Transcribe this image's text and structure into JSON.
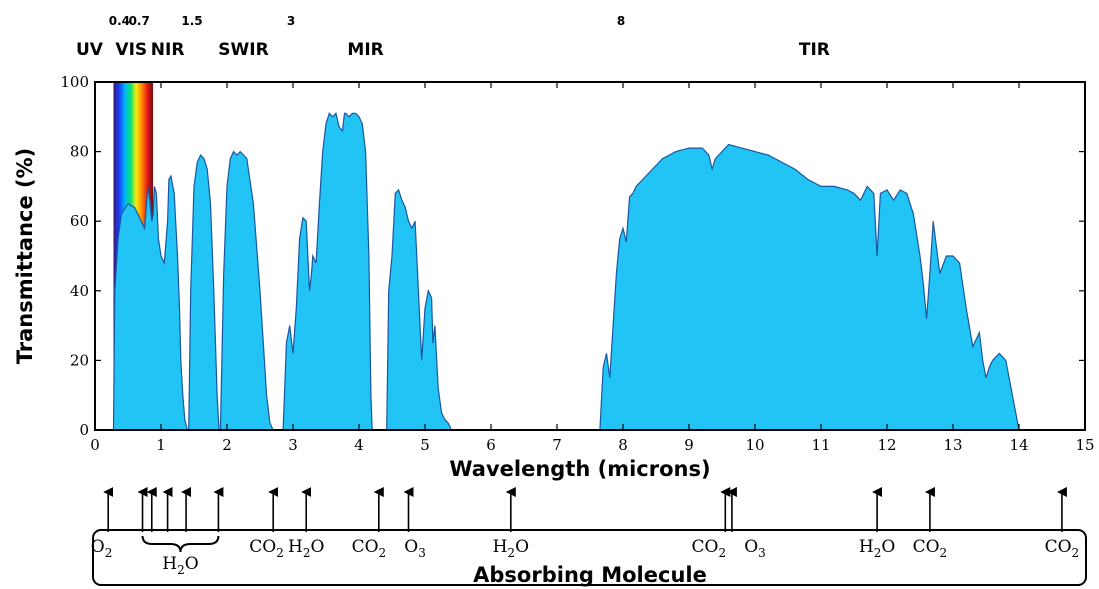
{
  "chart_data": {
    "type": "area",
    "xlabel": "Wavelength (microns)",
    "ylabel": "Transmittance (%)",
    "xlim": [
      0,
      15
    ],
    "ylim": [
      0,
      100
    ],
    "x_ticks": [
      0,
      1,
      2,
      3,
      4,
      5,
      6,
      7,
      8,
      9,
      10,
      11,
      12,
      13,
      14,
      15
    ],
    "y_ticks": [
      0,
      20,
      40,
      60,
      80,
      100
    ],
    "grid": false,
    "colors": {
      "fill": "#22c4f5",
      "stroke": "#1a56a0",
      "axis": "#000000"
    },
    "spectrum_strip": {
      "x_start": 0.28,
      "x_end": 0.88,
      "colors": [
        "#3a1b6e",
        "#1a3cff",
        "#00b4ff",
        "#00e07a",
        "#f7ee10",
        "#ff8a00",
        "#e81818",
        "#6b1010"
      ]
    },
    "boundaries": [
      {
        "value": 0.4,
        "label": "0.4"
      },
      {
        "value": 0.7,
        "label": "0.7"
      },
      {
        "value": 1.5,
        "label": "1.5"
      },
      {
        "value": 3,
        "label": "3"
      },
      {
        "value": 8,
        "label": "8"
      }
    ],
    "bands": [
      {
        "label": "UV",
        "x": 0.0
      },
      {
        "label": "VIS",
        "x": 0.55
      },
      {
        "label": "NIR",
        "x": 1.1
      },
      {
        "label": "SWIR",
        "x": 2.25
      },
      {
        "label": "MIR",
        "x": 4.1
      },
      {
        "label": "TIR",
        "x": 10.9
      }
    ],
    "windows": [
      {
        "x": [
          0.28,
          0.3,
          0.35,
          0.4,
          0.5,
          0.6,
          0.7,
          0.75,
          0.78,
          0.8,
          0.83,
          0.86,
          0.88,
          0.9,
          0.93,
          0.96,
          1.0,
          1.05,
          1.1,
          1.12,
          1.15,
          1.2,
          1.25,
          1.28,
          1.3,
          1.33,
          1.36,
          1.4
        ],
        "y": [
          0,
          40,
          55,
          62,
          65,
          64,
          60,
          58,
          65,
          70,
          66,
          60,
          62,
          70,
          68,
          55,
          50,
          48,
          60,
          72,
          73,
          68,
          50,
          35,
          20,
          10,
          3,
          0
        ]
      },
      {
        "x": [
          1.42,
          1.45,
          1.5,
          1.55,
          1.6,
          1.65,
          1.7,
          1.75,
          1.8,
          1.85,
          1.88
        ],
        "y": [
          0,
          40,
          70,
          77,
          79,
          78,
          75,
          65,
          40,
          10,
          0
        ]
      },
      {
        "x": [
          1.9,
          1.95,
          2.0,
          2.05,
          2.1,
          2.15,
          2.2,
          2.3,
          2.4,
          2.5,
          2.6,
          2.65,
          2.7
        ],
        "y": [
          0,
          45,
          70,
          78,
          80,
          79,
          80,
          78,
          65,
          40,
          10,
          2,
          0
        ]
      },
      {
        "x": [
          2.85,
          2.88,
          2.9,
          2.95,
          3.0,
          3.05,
          3.1,
          3.15,
          3.2,
          3.25,
          3.28,
          3.3,
          3.35,
          3.4,
          3.45,
          3.5,
          3.55,
          3.6,
          3.65,
          3.7,
          3.75,
          3.78,
          3.8,
          3.85,
          3.9,
          3.95,
          4.0,
          4.05,
          4.1,
          4.15,
          4.18,
          4.2
        ],
        "y": [
          0,
          15,
          25,
          30,
          22,
          35,
          55,
          61,
          60,
          40,
          45,
          50,
          48,
          65,
          80,
          88,
          91,
          90,
          91,
          87,
          86,
          91,
          91,
          90,
          91,
          91,
          90,
          88,
          80,
          50,
          10,
          0
        ]
      },
      {
        "x": [
          4.42,
          4.45,
          4.5,
          4.55,
          4.6,
          4.65,
          4.7,
          4.75,
          4.8,
          4.85,
          4.9,
          4.95,
          5.0,
          5.05,
          5.1,
          5.12,
          5.15,
          5.2,
          5.25,
          5.3,
          5.35,
          5.4
        ],
        "y": [
          0,
          40,
          50,
          68,
          69,
          66,
          64,
          60,
          58,
          60,
          40,
          20,
          35,
          40,
          38,
          25,
          30,
          12,
          5,
          3,
          2,
          0
        ]
      },
      {
        "x": [
          7.65,
          7.7,
          7.75,
          7.8,
          7.85,
          7.9,
          7.95,
          8.0,
          8.05,
          8.1,
          8.15,
          8.2,
          8.3,
          8.4,
          8.5,
          8.6,
          8.7,
          8.8,
          9.0,
          9.2,
          9.3,
          9.35,
          9.4,
          9.5,
          9.6,
          9.8,
          10.0,
          10.2,
          10.4,
          10.6,
          10.8,
          11.0,
          11.2,
          11.4,
          11.5,
          11.6,
          11.7,
          11.8,
          11.85,
          11.9,
          12.0,
          12.1,
          12.2,
          12.3,
          12.4,
          12.5,
          12.55,
          12.6,
          12.65,
          12.7,
          12.8,
          12.9,
          13.0,
          13.1,
          13.2,
          13.3,
          13.4,
          13.45,
          13.5,
          13.55,
          13.6,
          13.7,
          13.8,
          13.9,
          14.0
        ],
        "y": [
          0,
          18,
          22,
          15,
          30,
          45,
          55,
          58,
          54,
          67,
          68,
          70,
          72,
          74,
          76,
          78,
          79,
          80,
          81,
          81,
          79,
          75,
          78,
          80,
          82,
          81,
          80,
          79,
          77,
          75,
          72,
          70,
          70,
          69,
          68,
          66,
          70,
          68,
          50,
          68,
          69,
          66,
          69,
          68,
          62,
          50,
          42,
          32,
          45,
          60,
          45,
          50,
          50,
          48,
          35,
          24,
          28,
          20,
          15,
          18,
          20,
          22,
          20,
          10,
          0
        ]
      }
    ],
    "molecule_markers": [
      {
        "x": 0.2,
        "label": "O",
        "sub": "2",
        "label_x": 0.1
      },
      {
        "x": 0.72,
        "label": "",
        "sub": ""
      },
      {
        "x": 0.86,
        "label": "",
        "sub": ""
      },
      {
        "x": 1.1,
        "label": "",
        "sub": ""
      },
      {
        "x": 1.38,
        "label": "",
        "sub": ""
      },
      {
        "x": 1.87,
        "label": "",
        "sub": ""
      },
      {
        "x": 2.7,
        "label": "CO",
        "sub": "2",
        "label_x": 2.6
      },
      {
        "x": 3.2,
        "label": "H",
        "sub": "2",
        "tail": "O",
        "label_x": 3.2
      },
      {
        "x": 4.3,
        "label": "CO",
        "sub": "2",
        "label_x": 4.15
      },
      {
        "x": 4.75,
        "label": "O",
        "sub": "3",
        "label_x": 4.85
      },
      {
        "x": 6.3,
        "label": "H",
        "sub": "2",
        "tail": "O",
        "label_x": 6.3
      },
      {
        "x": 9.55,
        "label": "CO",
        "sub": "2",
        "label_x": 9.3
      },
      {
        "x": 9.65,
        "label": "O",
        "sub": "3",
        "label_x": 10.0
      },
      {
        "x": 11.85,
        "label": "H",
        "sub": "2",
        "tail": "O",
        "label_x": 11.85
      },
      {
        "x": 12.65,
        "label": "CO",
        "sub": "2",
        "label_x": 12.65
      },
      {
        "x": 14.65,
        "label": "CO",
        "sub": "2",
        "label_x": 14.65
      }
    ],
    "h2o_group_label": {
      "label": "H",
      "sub": "2",
      "tail": "O"
    },
    "molecule_box_title": "Absorbing Molecule"
  }
}
